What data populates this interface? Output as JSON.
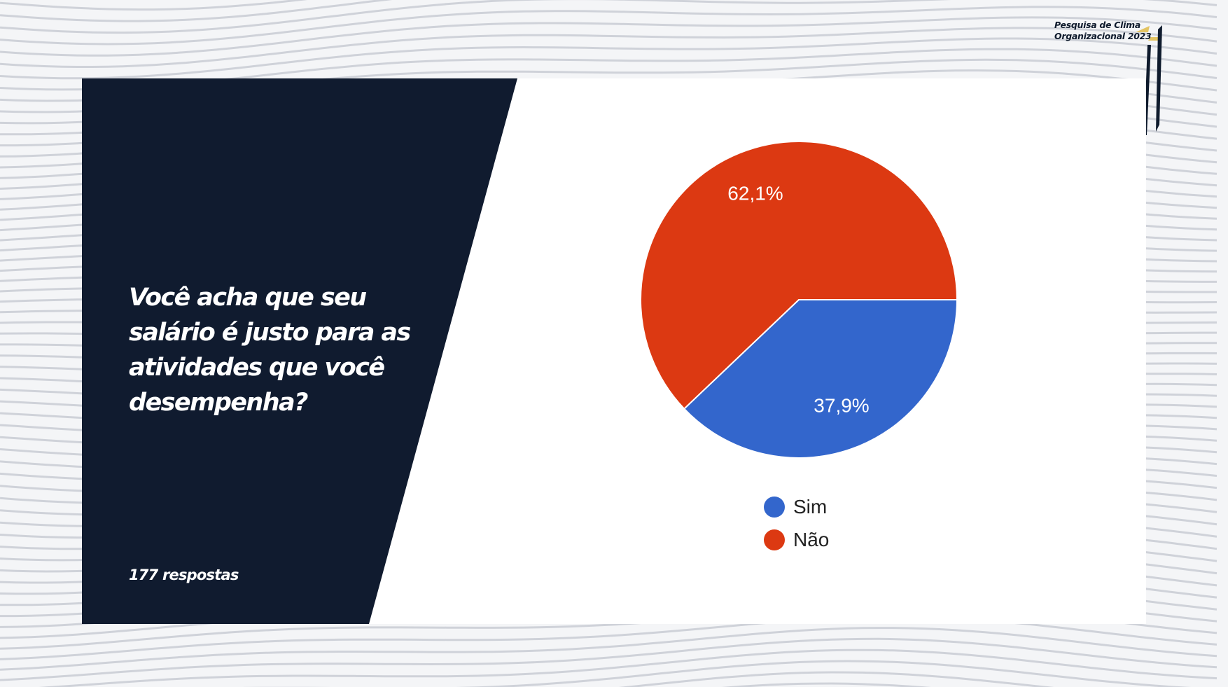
{
  "header": {
    "brand_line1": "Pesquisa de Clima",
    "brand_line2": "Organizacional 2023"
  },
  "panel": {
    "question": "Você acha que seu salário é justo para as atividades que você desempenha?",
    "responses_text": "177 respostas"
  },
  "colors": {
    "panel_bg": "#101b2f",
    "sim": "#3366cc",
    "nao": "#dc3912",
    "brand_gold": "#e3c463"
  },
  "chart_data": {
    "type": "pie",
    "title": "",
    "slices": [
      {
        "label": "Sim",
        "value": 37.9,
        "value_label": "37,9%",
        "color": "#3366cc"
      },
      {
        "label": "Não",
        "value": 62.1,
        "value_label": "62,1%",
        "color": "#dc3912"
      }
    ],
    "legend_position": "bottom"
  }
}
